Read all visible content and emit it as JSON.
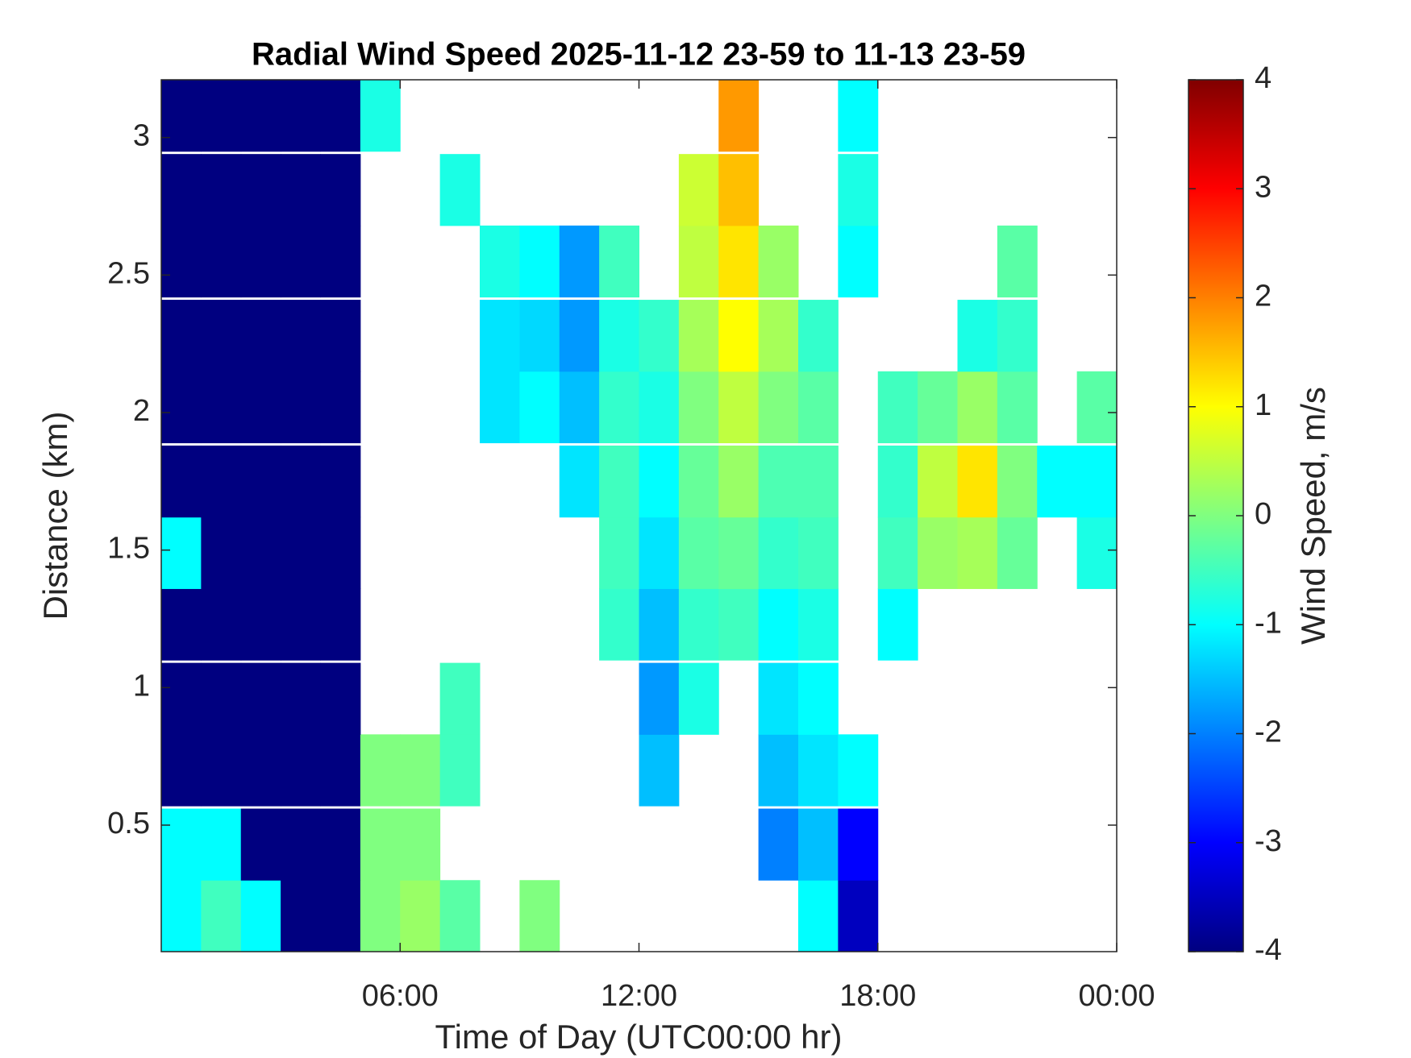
{
  "chart_data": {
    "type": "heatmap",
    "title": "Radial Wind Speed 2025-11-12 23-59 to 11-13 23-59",
    "x_label": "Time of Day (UTC00:00 hr)",
    "y_label": "Distance (km)",
    "colorbar_label": "Wind Speed, m/s",
    "colormap": "jet",
    "xlim": [
      0,
      24
    ],
    "xticks": [
      {
        "value": 6,
        "label": "06:00"
      },
      {
        "value": 12,
        "label": "12:00"
      },
      {
        "value": 18,
        "label": "18:00"
      },
      {
        "value": 24,
        "label": "00:00"
      }
    ],
    "ylim": [
      0.04,
      3.21
    ],
    "yticks": [
      0.5,
      1,
      1.5,
      2,
      2.5,
      3
    ],
    "clim": [
      -4,
      4
    ],
    "cticks": [
      -4,
      -3,
      -2,
      -1,
      0,
      1,
      2,
      3,
      4
    ],
    "x": [
      0.5,
      1.5,
      2.5,
      3.5,
      4.5,
      5.5,
      6.5,
      7.5,
      8.5,
      9.5,
      10.5,
      11.5,
      12.5,
      13.5,
      14.5,
      15.5,
      16.5,
      17.5,
      18.5,
      19.5,
      20.5,
      21.5,
      22.5,
      23.5
    ],
    "y": [
      0.17,
      0.43,
      0.7,
      0.96,
      1.23,
      1.49,
      1.75,
      2.02,
      2.28,
      2.55,
      2.81,
      3.08
    ],
    "z": [
      [
        -1,
        -0.5,
        -1,
        -4,
        -4,
        0,
        0.2,
        -0.3,
        null,
        0,
        null,
        null,
        null,
        null,
        null,
        null,
        -1,
        -3.5,
        null,
        null,
        null,
        null,
        null,
        null
      ],
      [
        -1,
        -1,
        -4,
        -4,
        -4,
        0,
        0,
        null,
        null,
        null,
        null,
        null,
        null,
        null,
        null,
        -2,
        -1.5,
        -3,
        null,
        null,
        null,
        null,
        null,
        null
      ],
      [
        -4,
        -4,
        -4,
        -4,
        -4,
        0,
        0,
        -0.5,
        null,
        null,
        null,
        null,
        -1.5,
        null,
        null,
        -1.5,
        -1.2,
        -1,
        null,
        null,
        null,
        null,
        null,
        null
      ],
      [
        -4,
        -4,
        -4,
        -4,
        -4,
        null,
        null,
        -0.5,
        null,
        null,
        null,
        null,
        -1.8,
        -0.8,
        null,
        -1.2,
        -1,
        null,
        null,
        null,
        null,
        null,
        null,
        null
      ],
      [
        -4,
        -4,
        -4,
        -4,
        -4,
        null,
        null,
        null,
        null,
        null,
        null,
        -0.6,
        -1.5,
        -0.6,
        -0.5,
        -1,
        -0.8,
        null,
        -1,
        null,
        null,
        null,
        null,
        null
      ],
      [
        -1,
        -4,
        -4,
        -4,
        -4,
        null,
        null,
        null,
        null,
        null,
        null,
        -0.5,
        -1.2,
        -0.3,
        -0.2,
        -0.6,
        -0.5,
        null,
        -0.5,
        0.2,
        0.3,
        -0.2,
        null,
        -0.8
      ],
      [
        -4,
        -4,
        -4,
        -4,
        -4,
        null,
        null,
        null,
        null,
        null,
        -1.2,
        -0.5,
        -1,
        -0.2,
        0.2,
        -0.4,
        -0.4,
        null,
        -0.6,
        0.5,
        1.2,
        0,
        -1,
        -1
      ],
      [
        -4,
        -4,
        -4,
        -4,
        -4,
        null,
        null,
        null,
        -1.2,
        -1,
        -1.5,
        -0.6,
        -0.8,
        0,
        0.5,
        0,
        -0.3,
        null,
        -0.5,
        -0.2,
        0.2,
        -0.3,
        null,
        -0.3
      ],
      [
        -4,
        -4,
        -4,
        -4,
        -4,
        null,
        null,
        null,
        -1.2,
        -1.3,
        -1.8,
        -0.8,
        -0.6,
        0.3,
        1,
        0.3,
        -0.6,
        null,
        null,
        null,
        -0.8,
        -0.6,
        null,
        null
      ],
      [
        -4,
        -4,
        -4,
        -4,
        -4,
        null,
        null,
        null,
        -0.8,
        -1,
        -1.8,
        -0.5,
        null,
        0.5,
        1.2,
        0.2,
        null,
        -1,
        null,
        null,
        null,
        -0.3,
        null,
        null
      ],
      [
        -4,
        -4,
        -4,
        -4,
        -4,
        null,
        null,
        -0.8,
        null,
        null,
        null,
        null,
        null,
        0.6,
        1.5,
        null,
        null,
        -0.8,
        null,
        null,
        null,
        null,
        null,
        null
      ],
      [
        -4,
        -4,
        -4,
        -4,
        -4,
        -0.8,
        null,
        null,
        null,
        null,
        null,
        null,
        null,
        null,
        1.8,
        null,
        null,
        -1,
        null,
        null,
        null,
        null,
        null,
        null
      ]
    ]
  }
}
